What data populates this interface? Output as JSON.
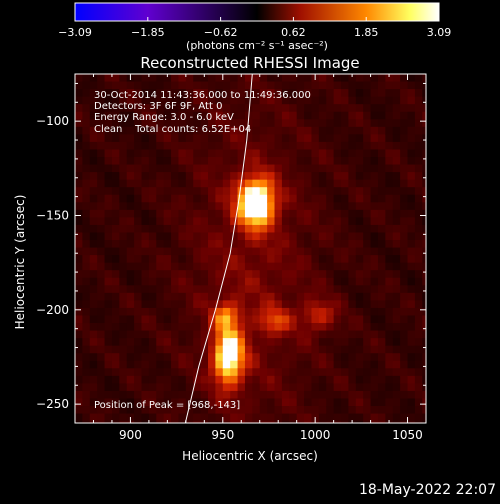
{
  "chart_data": {
    "type": "heatmap",
    "title": "Reconstructed RHESSI Image",
    "xlabel": "Heliocentric X (arcsec)",
    "ylabel": "Heliocentric Y (arcsec)",
    "xlim": [
      870,
      1060
    ],
    "ylim": [
      -260,
      -75
    ],
    "xticks": [
      {
        "v": 900,
        "label": "900"
      },
      {
        "v": 950,
        "label": "950"
      },
      {
        "v": 1000,
        "label": "1000"
      },
      {
        "v": 1050,
        "label": "1050"
      }
    ],
    "yticks": [
      {
        "v": -100,
        "label": "−100"
      },
      {
        "v": -150,
        "label": "−150"
      },
      {
        "v": -200,
        "label": "−200"
      },
      {
        "v": -250,
        "label": "−250"
      }
    ],
    "colorbar": {
      "range": [
        -3.09,
        3.09
      ],
      "tick_labels": [
        "−3.09",
        "−1.85",
        "−0.62",
        "0.62",
        "1.85",
        "3.09"
      ],
      "units": "(photons cm⁻² s⁻¹ asec⁻²)",
      "colors": [
        "#0000ff",
        "#6a00c8",
        "#000000",
        "#c02000",
        "#ff9a00",
        "#ffffa0",
        "#ffffff"
      ]
    },
    "info_lines": [
      "30-Oct-2014 11:43:36.000 to 11:49:36.000",
      "Detectors: 3F 6F 9F, Att 0",
      "Energy Range: 3.0 - 6.0 keV",
      "Clean    Total counts: 6.52E+04"
    ],
    "peak_label": "Position of Peak = [968,-143]",
    "sources": [
      {
        "x": 968,
        "y": -143,
        "sx": 7,
        "sy": 9,
        "amp": 3.0
      },
      {
        "x": 953,
        "y": -225,
        "sx": 6,
        "sy": 11,
        "amp": 2.6
      },
      {
        "x": 952,
        "y": -203,
        "sx": 5,
        "sy": 5,
        "amp": 1.2
      },
      {
        "x": 978,
        "y": -206,
        "sx": 6,
        "sy": 5,
        "amp": 1.0
      },
      {
        "x": 1002,
        "y": -203,
        "sx": 7,
        "sy": 6,
        "amp": 1.0
      },
      {
        "x": 965,
        "y": -178,
        "sx": 25,
        "sy": 60,
        "amp": 0.6
      }
    ],
    "background_level": 0.9,
    "limb_curve": [
      {
        "x": 929,
        "y": -263
      },
      {
        "x": 937,
        "y": -230
      },
      {
        "x": 946,
        "y": -200
      },
      {
        "x": 954,
        "y": -170
      },
      {
        "x": 959,
        "y": -140
      },
      {
        "x": 963,
        "y": -110
      },
      {
        "x": 966,
        "y": -75
      }
    ]
  },
  "footer": {
    "timestamp": "18-May-2022 22:07"
  }
}
